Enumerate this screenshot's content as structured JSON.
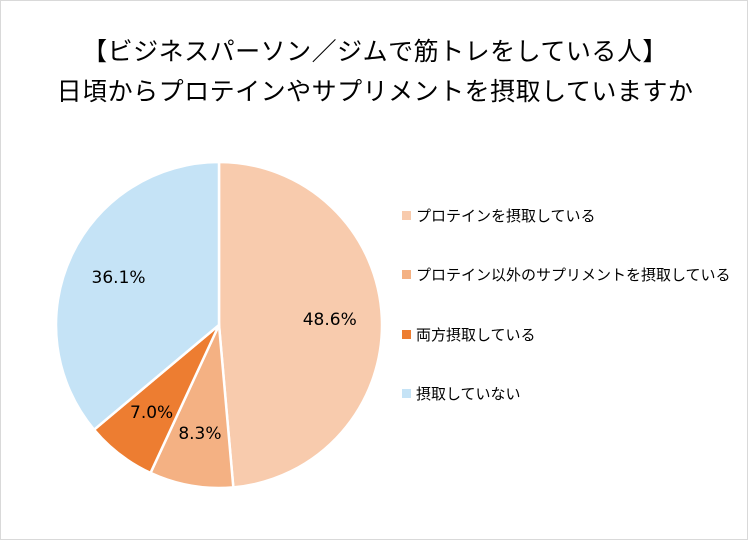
{
  "chart_data": {
    "type": "pie",
    "title_line1": "【ビジネスパーソン／ジムで筋トレをしている人】",
    "title_line2": "日頃からプロテインやサプリメントを摂取していますか",
    "slices": [
      {
        "label": "プロテインを摂取している",
        "value": 48.6,
        "value_label": "48.6%",
        "color": "#f8cbad"
      },
      {
        "label": "プロテイン以外のサプリメントを摂取している",
        "value": 8.3,
        "value_label": "8.3%",
        "color": "#f4b183"
      },
      {
        "label": "両方摂取している",
        "value": 7.0,
        "value_label": "7.0%",
        "color": "#ed7d31"
      },
      {
        "label": "摂取していない",
        "value": 36.1,
        "value_label": "36.1%",
        "color": "#c5e3f6"
      }
    ],
    "legend_position": "right",
    "start_angle": "12 o'clock",
    "direction": "clockwise"
  }
}
